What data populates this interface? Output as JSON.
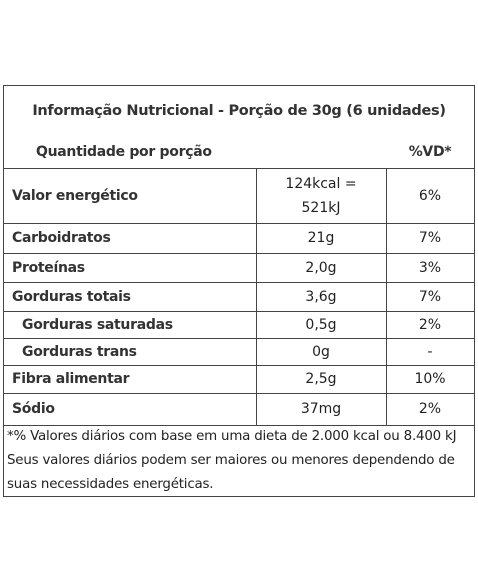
{
  "title": "Informação Nutricional - Porção de 30g (6 unidades)",
  "header": {
    "left": "Quantidade por porção",
    "right": "%VD*"
  },
  "rows": [
    {
      "name": "Valor energético",
      "amount": "124kcal = 521kJ",
      "vd": "6%"
    },
    {
      "name": "Carboidratos",
      "amount": "21g",
      "vd": "7%"
    },
    {
      "name": "Proteínas",
      "amount": "2,0g",
      "vd": "3%"
    },
    {
      "name": "Gorduras totais",
      "amount": "3,6g",
      "vd": "7%"
    },
    {
      "name": "Gorduras saturadas",
      "amount": "0,5g",
      "vd": "2%",
      "indent": true
    },
    {
      "name": "Gorduras trans",
      "amount": "0g",
      "vd": "-",
      "indent": true
    },
    {
      "name": "Fibra alimentar",
      "amount": "2,5g",
      "vd": "10%"
    },
    {
      "name": "Sódio",
      "amount": "37mg",
      "vd": "2%"
    }
  ],
  "footnote": "*% Valores diários com base em uma dieta de 2.000 kcal ou 8.400 kJ Seus valores diários podem ser maiores ou menores dependendo de suas necessidades energéticas."
}
